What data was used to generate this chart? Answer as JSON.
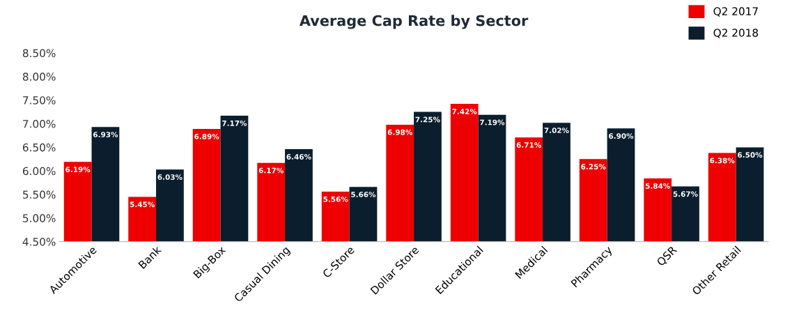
{
  "chart_data": {
    "type": "bar",
    "title": "Average Cap Rate by Sector",
    "categories": [
      "Automotive",
      "Bank",
      "Big-Box",
      "Casual Dining",
      "C-Store",
      "Dollar Store",
      "Educational",
      "Medical",
      "Pharmacy",
      "QSR",
      "Other Retail"
    ],
    "series": [
      {
        "name": "Q2 2017",
        "color": "#ee0000",
        "values": [
          6.19,
          5.45,
          6.89,
          6.17,
          5.56,
          6.98,
          7.42,
          6.71,
          6.25,
          5.84,
          6.38
        ],
        "value_labels": [
          "6.19%",
          "5.45%",
          "6.89%",
          "6.17%",
          "5.56%",
          "6.98%",
          "7.42%",
          "6.71%",
          "6.25%",
          "5.84%",
          "6.38%"
        ]
      },
      {
        "name": "Q2 2018",
        "color": "#0b1e2d",
        "values": [
          6.93,
          6.03,
          7.17,
          6.46,
          5.66,
          7.25,
          7.19,
          7.02,
          6.9,
          5.67,
          6.5
        ],
        "value_labels": [
          "6.93%",
          "6.03%",
          "7.17%",
          "6.46%",
          "5.66%",
          "7.25%",
          "7.19%",
          "7.02%",
          "6.90%",
          "5.67%",
          "6.50%"
        ]
      }
    ],
    "ylim": [
      4.5,
      8.5
    ],
    "yticks": [
      {
        "value": 4.5,
        "label": "4.50%"
      },
      {
        "value": 5.0,
        "label": "5.00%"
      },
      {
        "value": 5.5,
        "label": "5.50%"
      },
      {
        "value": 6.0,
        "label": "6.00%"
      },
      {
        "value": 6.5,
        "label": "6.50%"
      },
      {
        "value": 7.0,
        "label": "7.00%"
      },
      {
        "value": 7.5,
        "label": "7.50%"
      },
      {
        "value": 8.0,
        "label": "8.00%"
      },
      {
        "value": 8.5,
        "label": "8.50%"
      }
    ],
    "legend": "top right",
    "grid": false
  }
}
